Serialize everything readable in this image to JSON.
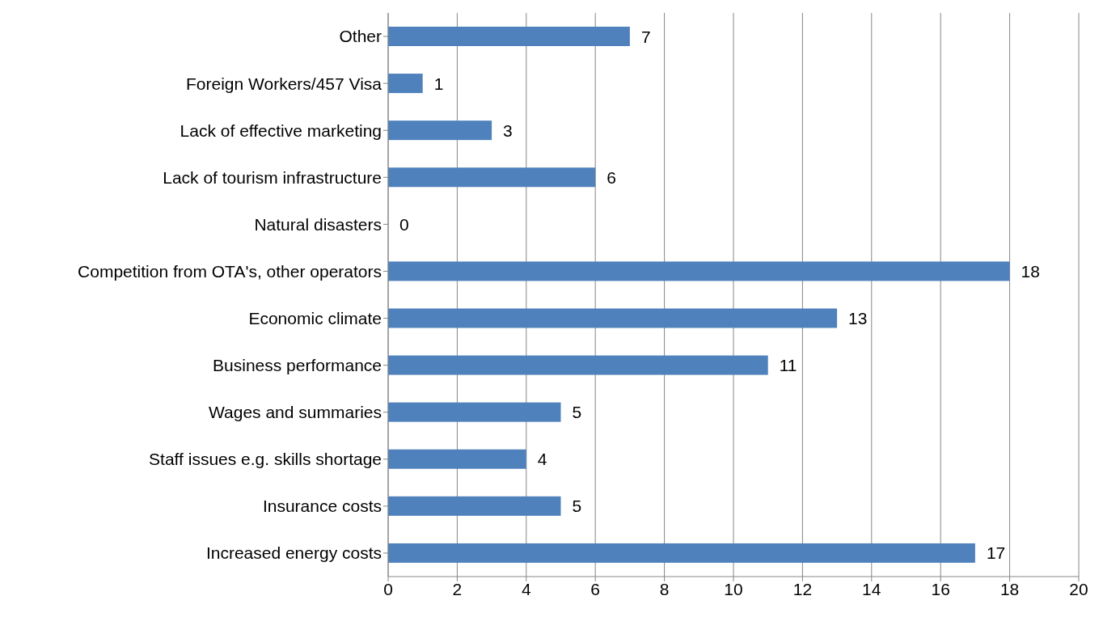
{
  "chart_data": {
    "type": "bar",
    "orientation": "horizontal",
    "categories": [
      "Other",
      "Foreign Workers/457 Visa",
      "Lack of effective marketing",
      "Lack of tourism infrastructure",
      "Natural disasters",
      "Competition from OTA's, other operators",
      "Economic climate",
      "Business performance",
      "Wages and summaries",
      "Staff issues e.g. skills shortage",
      "Insurance costs",
      "Increased energy costs"
    ],
    "values": [
      7,
      1,
      3,
      6,
      0,
      18,
      13,
      11,
      5,
      4,
      5,
      17
    ],
    "color": "#4f81bd",
    "xlim": [
      0,
      20
    ],
    "xticks": [
      0,
      2,
      4,
      6,
      8,
      10,
      12,
      14,
      16,
      18,
      20
    ],
    "grid": "x",
    "data_labels": true
  }
}
